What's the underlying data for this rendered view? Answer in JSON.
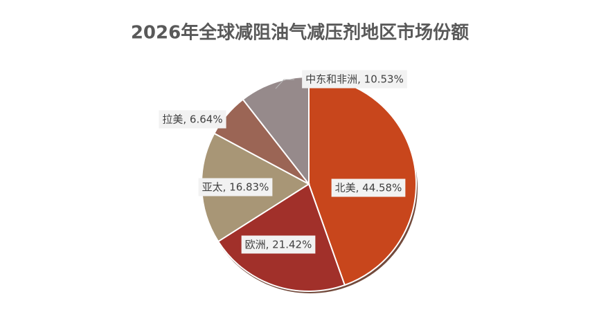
{
  "chart_data": {
    "type": "pie",
    "title": "2026年全球减阻油气减压剂地区市场份额",
    "categories": [
      "北美",
      "欧洲",
      "亚太",
      "拉美",
      "中东和非洲"
    ],
    "values": [
      44.58,
      21.42,
      16.83,
      6.64,
      10.53
    ],
    "value_labels": [
      "北美, 44.58%",
      "欧洲, 21.42%",
      "亚太, 16.83%",
      "拉美, 6.64%",
      "中东和非洲, 10.53%"
    ],
    "colors": [
      "#c8461c",
      "#a1302a",
      "#a89676",
      "#9b6555",
      "#968a8b"
    ]
  }
}
